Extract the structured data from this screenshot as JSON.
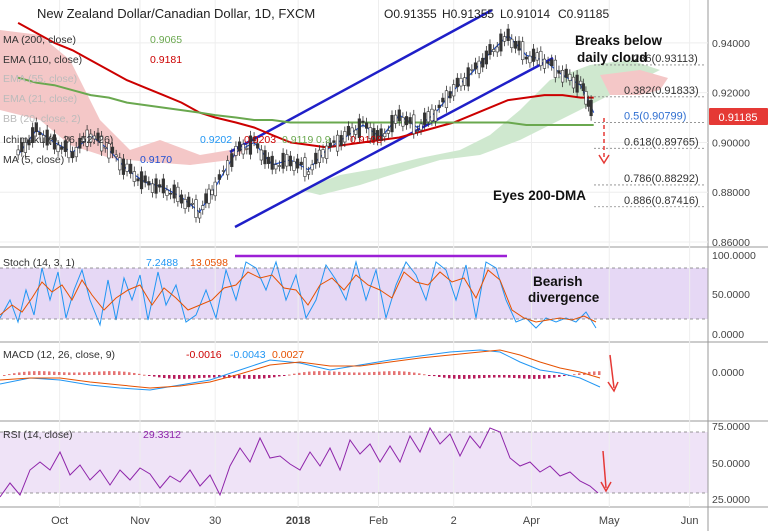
{
  "header": {
    "title": "New Zealand Dollar/Canadian Dollar, 1D, FXCM",
    "ohlc": [
      "O0.91355",
      "H0.91355",
      "L0.91014",
      "C0.91185"
    ],
    "price_tag": "0.91185"
  },
  "colors": {
    "price_tag": "#e53935",
    "ma200": "#6aa84f",
    "ema110": "#cc0000",
    "ema5": "#1f4fd1",
    "channel": "#1f1fc8",
    "cloud_bear": "#f4c7c7",
    "cloud_bull": "#cfe8cf",
    "stoch_band": "#e6d8f5",
    "rsi_band": "#efe3f7",
    "purple_line": "#9c1fd6",
    "arrow": "#e53935"
  },
  "indicators": {
    "ma200": {
      "label": "MA (200, close)",
      "value": "0.9065"
    },
    "ema110": {
      "label": "EMA (110, close)",
      "value": "0.9181"
    },
    "ema55": {
      "label": "EMA (55, close)"
    },
    "ema21": {
      "label": "EMA (21, close)"
    },
    "bb": {
      "label": "BB (20, close, 2)"
    },
    "ichimoku": {
      "label": "Ichimoku (9, 26, 52, 26)",
      "values": [
        "0.9202",
        "0.9203",
        "0.9119",
        "0.9",
        "0.9198"
      ]
    },
    "ma5": {
      "label": "MA (5, close)",
      "value": "0.9170"
    }
  },
  "annotations": {
    "breaks": [
      "Breaks below",
      "daily cloud"
    ],
    "eyes": "Eyes 200-DMA",
    "divergence": [
      "Bearish",
      "divergence"
    ]
  },
  "fib_levels": [
    {
      "label": "0.236(0.93113)",
      "value": 0.93113,
      "color": "#333333"
    },
    {
      "label": "0.382(0.91833)",
      "value": 0.91833,
      "color": "#333333"
    },
    {
      "label": "0.5(0.90799)",
      "value": 0.90799,
      "color": "#2f6fd1"
    },
    {
      "label": "0.618(0.89765)",
      "value": 0.89765,
      "color": "#333333"
    },
    {
      "label": "0.786(0.88292)",
      "value": 0.88292,
      "color": "#333333"
    },
    {
      "label": "0.886(0.87416)",
      "value": 0.87416,
      "color": "#333333"
    }
  ],
  "panes": {
    "stoch": {
      "label": "Stoch (14, 3, 1)",
      "values": [
        "7.2488",
        "13.0598"
      ],
      "ticks": [
        "100.0000",
        "50.0000",
        "0.0000"
      ]
    },
    "macd": {
      "label": "MACD (12, 26, close, 9)",
      "values": [
        "-0.0016",
        "-0.0043",
        "0.0027"
      ],
      "ticks": [
        "0.0000"
      ]
    },
    "rsi": {
      "label": "RSI (14, close)",
      "value": "29.3312",
      "ticks": [
        "75.0000",
        "50.0000",
        "25.0000"
      ]
    }
  },
  "chart_data": {
    "type": "line",
    "y_ticks": [
      "0.94000",
      "0.92000",
      "0.90000",
      "0.88000",
      "0.86000"
    ],
    "ylim": [
      0.858,
      0.954
    ],
    "x_ticks": [
      "Oct",
      "Nov",
      "30",
      "2018",
      "Feb",
      "2",
      "Apr",
      "May",
      "Jun"
    ],
    "x": [
      "2017-09-15",
      "2017-09-22",
      "2017-09-29",
      "2017-10-06",
      "2017-10-13",
      "2017-10-20",
      "2017-10-27",
      "2017-11-03",
      "2017-11-10",
      "2017-11-17",
      "2017-11-24",
      "2017-11-30",
      "2017-12-08",
      "2017-12-15",
      "2017-12-22",
      "2017-12-29",
      "2018-01-05",
      "2018-01-12",
      "2018-01-19",
      "2018-01-26",
      "2018-02-02",
      "2018-02-09",
      "2018-02-16",
      "2018-02-23",
      "2018-03-02",
      "2018-03-09",
      "2018-03-16",
      "2018-03-23",
      "2018-03-30",
      "2018-04-06",
      "2018-04-13",
      "2018-04-20",
      "2018-04-25"
    ],
    "series": [
      {
        "values": [
          0.895,
          0.905,
          0.9,
          0.896,
          0.903,
          0.897,
          0.889,
          0.884,
          0.882,
          0.878,
          0.872,
          0.882,
          0.896,
          0.9,
          0.891,
          0.893,
          0.889,
          0.897,
          0.902,
          0.907,
          0.902,
          0.911,
          0.906,
          0.912,
          0.921,
          0.928,
          0.936,
          0.943,
          0.935,
          0.933,
          0.927,
          0.923,
          0.912
        ]
      },
      {
        "values": [
          0.948,
          0.944,
          0.94,
          0.937,
          0.933,
          0.929,
          0.925,
          0.922,
          0.919,
          0.916,
          0.912,
          0.91,
          0.908,
          0.906,
          0.903,
          0.9,
          0.899,
          0.898,
          0.899,
          0.9,
          0.901,
          0.902,
          0.904,
          0.906,
          0.908,
          0.911,
          0.914,
          0.917,
          0.918,
          0.919,
          0.919,
          0.918,
          0.918
        ]
      },
      {
        "values": [
          0.926,
          0.924,
          0.923,
          0.921,
          0.919,
          0.918,
          0.916,
          0.915,
          0.914,
          0.913,
          0.912,
          0.911,
          0.91,
          0.909,
          0.909,
          0.908,
          0.908,
          0.908,
          0.908,
          0.908,
          0.908,
          0.908,
          0.908,
          0.908,
          0.908,
          0.908,
          0.908,
          0.908,
          0.907,
          0.907,
          0.907,
          0.907,
          0.907
        ]
      }
    ]
  }
}
